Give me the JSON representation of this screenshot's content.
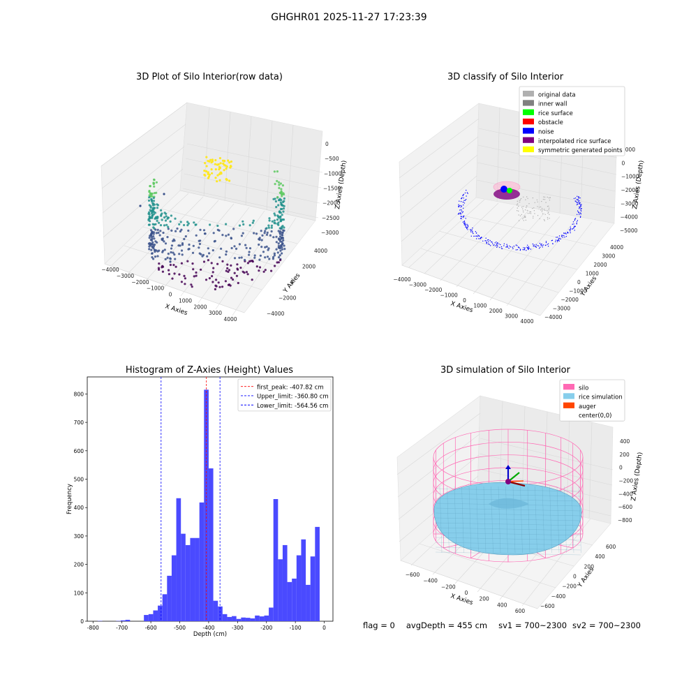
{
  "suptitle": "GHGHR01 2025-11-27 17:23:39",
  "footer": {
    "flag": "flag = 0",
    "avg_depth": "avgDepth = 455 cm",
    "sv1": "sv1 = 700~2300",
    "sv2": "sv2 = 700~2300"
  },
  "chart_data": [
    {
      "type": "scatter",
      "title": "3D Plot of Silo Interior(row data)",
      "xlabel": "X Axies",
      "ylabel": "Y Axies",
      "zlabel": "Z Axies (Depth)",
      "xticks": [
        "−4000",
        "−3000",
        "−2000",
        "−1000",
        "0",
        "1000",
        "2000",
        "3000",
        "4000"
      ],
      "yticks": [
        "−4000",
        "−2000",
        "0",
        "2000",
        "4000"
      ],
      "zticks": [
        "0",
        "−500",
        "−1000",
        "−1500",
        "−2000",
        "−2500",
        "−3000"
      ],
      "xlim": [
        -4000,
        4000
      ],
      "ylim": [
        -4000,
        4000
      ],
      "zlim": [
        -3000,
        0
      ],
      "colormap": [
        "#440154",
        "#3b528b",
        "#21918c",
        "#5ec962",
        "#fde725"
      ]
    },
    {
      "type": "scatter",
      "title": "3D classify of Silo Interior",
      "xlabel": "X Axies",
      "ylabel": "Y Axies",
      "zlabel": "Z Axies (Depth)",
      "xticks": [
        "−4000",
        "−3000",
        "−2000",
        "−1000",
        "0",
        "1000",
        "2000",
        "3000",
        "4000"
      ],
      "yticks": [
        "−4000",
        "−3000",
        "−2000",
        "−1000",
        "0",
        "1000",
        "2000",
        "3000",
        "4000"
      ],
      "zticks": [
        "1000",
        "0",
        "−1000",
        "−2000",
        "−3000",
        "−4000",
        "−5000"
      ],
      "zlim": [
        -5000,
        1000
      ],
      "legend_position": "top-right",
      "legend": [
        {
          "label": "original data",
          "color": "#b0b0b0"
        },
        {
          "label": "inner wall",
          "color": "#808080"
        },
        {
          "label": "rice surface",
          "color": "#00ff00"
        },
        {
          "label": "obstacle",
          "color": "#ff0000"
        },
        {
          "label": "noise",
          "color": "#0000ff"
        },
        {
          "label": "interpolated rice surface",
          "color": "#800080"
        },
        {
          "label": "symmetric generated points",
          "color": "#ffff00"
        }
      ]
    },
    {
      "type": "bar",
      "title": "Histogram of Z-Axies (Height) Values",
      "xlabel": "Depth (cm)",
      "ylabel": "Frequency",
      "xlim": [
        -820,
        30
      ],
      "ylim": [
        0,
        860
      ],
      "xticks": [
        -800,
        -700,
        -600,
        -500,
        -400,
        -300,
        -200,
        -100,
        0
      ],
      "yticks": [
        0,
        100,
        200,
        300,
        400,
        500,
        600,
        700,
        800
      ],
      "bar_color": "#4a4aff",
      "bin_width": 16,
      "bins": [
        [
          -784,
          1
        ],
        [
          -720,
          1
        ],
        [
          -704,
          3
        ],
        [
          -688,
          5
        ],
        [
          -624,
          22
        ],
        [
          -608,
          25
        ],
        [
          -592,
          38
        ],
        [
          -576,
          55
        ],
        [
          -560,
          95
        ],
        [
          -544,
          160
        ],
        [
          -528,
          232
        ],
        [
          -512,
          433
        ],
        [
          -496,
          308
        ],
        [
          -480,
          268
        ],
        [
          -464,
          293
        ],
        [
          -448,
          293
        ],
        [
          -432,
          418
        ],
        [
          -416,
          815
        ],
        [
          -400,
          538
        ],
        [
          -384,
          72
        ],
        [
          -368,
          52
        ],
        [
          -352,
          25
        ],
        [
          -336,
          15
        ],
        [
          -320,
          18
        ],
        [
          -304,
          8
        ],
        [
          -288,
          13
        ],
        [
          -272,
          12
        ],
        [
          -256,
          10
        ],
        [
          -240,
          20
        ],
        [
          -224,
          17
        ],
        [
          -208,
          20
        ],
        [
          -192,
          48
        ],
        [
          -176,
          430
        ],
        [
          -160,
          218
        ],
        [
          -144,
          268
        ],
        [
          -128,
          138
        ],
        [
          -112,
          150
        ],
        [
          -96,
          232
        ],
        [
          -80,
          288
        ],
        [
          -64,
          128
        ],
        [
          -48,
          228
        ],
        [
          -32,
          332
        ]
      ],
      "vlines": [
        {
          "x": -407.82,
          "color": "#ff0000"
        },
        {
          "x": -360.8,
          "color": "#0000ff"
        },
        {
          "x": -564.56,
          "color": "#0000ff"
        }
      ],
      "legend_position": "top-right",
      "legend": [
        {
          "label": "first_peak: -407.82 cm",
          "color": "#ff0000"
        },
        {
          "label": "Upper_limit: -360.80 cm",
          "color": "#0000ff"
        },
        {
          "label": "Lower_limit: -564.56 cm",
          "color": "#0000ff"
        }
      ]
    },
    {
      "type": "area",
      "title": "3D simulation of Silo Interior",
      "xlabel": "X Axies",
      "ylabel": "Y Axies",
      "zlabel": "Z Axies (Depth)",
      "xticks": [
        "−600",
        "−400",
        "−200",
        "0",
        "200",
        "400",
        "600"
      ],
      "yticks": [
        "−600",
        "−400",
        "−200",
        "0",
        "200",
        "400",
        "600"
      ],
      "zticks": [
        "400",
        "200",
        "0",
        "−200",
        "−400",
        "−600",
        "−800"
      ],
      "legend_position": "top-right",
      "legend": [
        {
          "label": "silo",
          "color": "#ff69b4"
        },
        {
          "label": "rice simulation",
          "color": "#87ceeb"
        },
        {
          "label": "auger",
          "color": "#ff4500"
        },
        {
          "label": "center(0,0)",
          "color": ""
        }
      ]
    }
  ]
}
